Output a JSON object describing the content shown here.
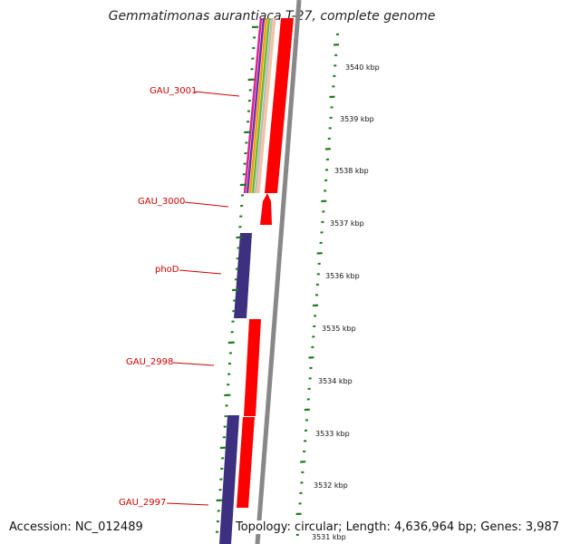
{
  "title": "Gemmatimonas aurantiaca T-27, complete genome",
  "accession": "Accession: NC_012489",
  "topology": "Topology: circular; Length: 4,636,964 bp; Genes: 3,987",
  "colors": {
    "forward_gene": "#ff0000",
    "reverse_gene": "#3d3080",
    "label": "#cc0000",
    "tick": "#1a7a1a",
    "backbone": "#888888"
  },
  "gene_labels": [
    "GAU_3001",
    "GAU_3000",
    "phoD",
    "GAU_2998",
    "GAU_2997"
  ],
  "kbp_labels": [
    "3540 kbp",
    "3539 kbp",
    "3538 kbp",
    "3537 kbp",
    "3536 kbp",
    "3535 kbp",
    "3534 kbp",
    "3533 kbp",
    "3532 kbp",
    "3531 kbp"
  ]
}
